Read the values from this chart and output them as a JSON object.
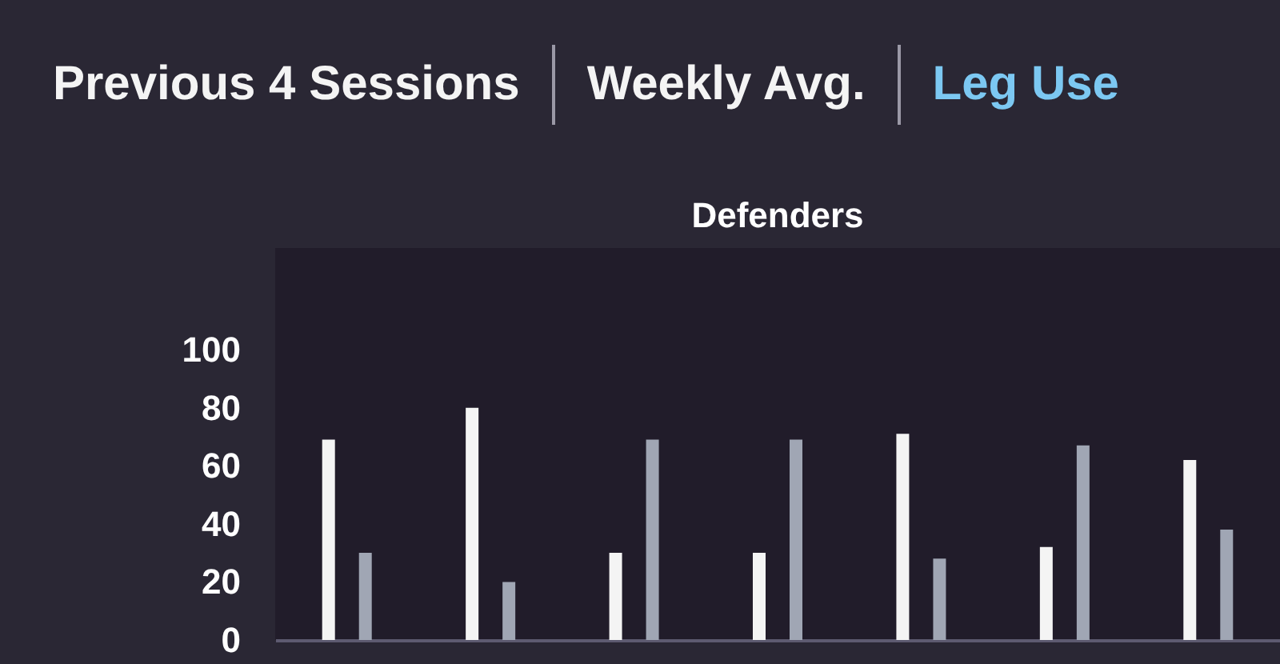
{
  "chart_data": {
    "type": "bar",
    "title": "Defenders",
    "annotations": [
      "Previous 4 Sessions",
      "Weekly Avg.",
      "Leg Use"
    ],
    "categories": [
      null,
      null,
      null,
      null,
      null,
      null,
      null
    ],
    "series": [
      {
        "color": "#f4f4f4",
        "values": [
          69,
          80,
          30,
          30,
          71,
          32,
          62
        ]
      },
      {
        "color": "#a0a6b4",
        "values": [
          30,
          20,
          69,
          69,
          28,
          67,
          38
        ]
      }
    ],
    "ylim": [
      0,
      135
    ],
    "yticks": [
      0,
      20,
      40,
      60,
      80,
      100
    ],
    "tick_labels": "y"
  }
}
